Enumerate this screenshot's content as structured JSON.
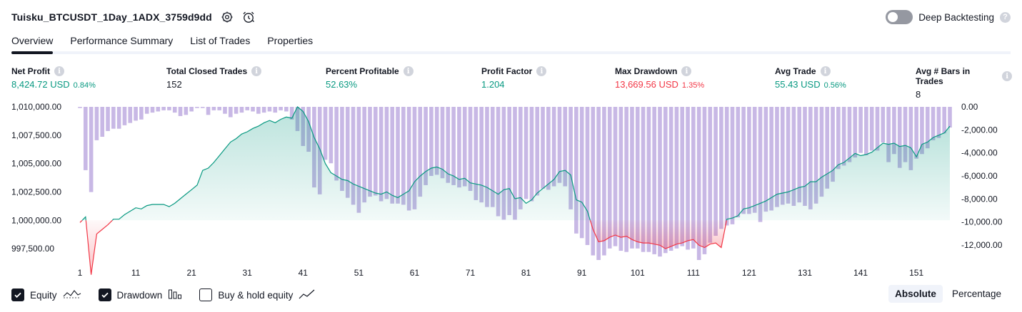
{
  "header": {
    "strategy_title": "Tuisku_BTCUSDT_1Day_1ADX_3759d9dd",
    "settings_icon": "gear-icon",
    "alert_icon": "alarm-clock-icon",
    "deep_backtesting_label": "Deep Backtesting",
    "deep_backtesting_enabled": false,
    "help_icon": "question-mark-icon",
    "help_glyph": "?"
  },
  "tabs": [
    {
      "label": "Overview",
      "active": true
    },
    {
      "label": "Performance Summary",
      "active": false
    },
    {
      "label": "List of Trades",
      "active": false
    },
    {
      "label": "Properties",
      "active": false
    }
  ],
  "stats": [
    {
      "label": "Net Profit",
      "value": "8,424.72 USD",
      "pct": "0.84%",
      "color": "#089981"
    },
    {
      "label": "Total Closed Trades",
      "value": "152",
      "pct": "",
      "color": "#131722"
    },
    {
      "label": "Percent Profitable",
      "value": "52.63%",
      "pct": "",
      "color": "#089981"
    },
    {
      "label": "Profit Factor",
      "value": "1.204",
      "pct": "",
      "color": "#089981"
    },
    {
      "label": "Max Drawdown",
      "value": "13,669.56 USD",
      "pct": "1.35%",
      "color": "#f23645"
    },
    {
      "label": "Avg Trade",
      "value": "55.43 USD",
      "pct": "0.56%",
      "color": "#089981"
    },
    {
      "label": "Avg # Bars in Trades",
      "value": "8",
      "pct": "",
      "color": "#131722"
    }
  ],
  "info_glyph": "i",
  "chart_data": {
    "type": "line",
    "x_ticks": [
      1,
      11,
      21,
      31,
      41,
      51,
      61,
      71,
      81,
      91,
      101,
      111,
      121,
      131,
      141,
      151
    ],
    "left_axis": {
      "ticks": [
        "1,010,000.00",
        "1,007,500.00",
        "1,005,000.00",
        "1,002,500.00",
        "1,000,000.00",
        "997,500.00"
      ],
      "range": [
        996500,
        1010000
      ]
    },
    "right_axis": {
      "ticks": [
        "0.00",
        "-2,000.00",
        "-4,000.00",
        "-6,000.00",
        "-8,000.00",
        "-10,000.00",
        "-12,000.00"
      ],
      "range": [
        -13300,
        0
      ]
    },
    "baseline": 1000000,
    "series": [
      {
        "name": "Equity",
        "color_above": "#089981",
        "color_below": "#f23645",
        "line_above": "#089981",
        "values": [
          999800,
          1000300,
          995200,
          998800,
          999200,
          999600,
          1000100,
          1000100,
          1000500,
          1000800,
          1001100,
          1001000,
          1001300,
          1001400,
          1001400,
          1001400,
          1001200,
          1001500,
          1001900,
          1002300,
          1002700,
          1003100,
          1004400,
          1004600,
          1005100,
          1005700,
          1006300,
          1006900,
          1007200,
          1007600,
          1007800,
          1008100,
          1008300,
          1008600,
          1008800,
          1008600,
          1008900,
          1009100,
          1009000,
          1010000,
          1009600,
          1008700,
          1007300,
          1006300,
          1005000,
          1004200,
          1003900,
          1003600,
          1003500,
          1003200,
          1003000,
          1002800,
          1002600,
          1002400,
          1002300,
          1002500,
          1002200,
          1002000,
          1002300,
          1002600,
          1003400,
          1003900,
          1004300,
          1004600,
          1004700,
          1004500,
          1004100,
          1003900,
          1003600,
          1003700,
          1003300,
          1003200,
          1003100,
          1002900,
          1002600,
          1002300,
          1002700,
          1002800,
          1001900,
          1002000,
          1001500,
          1001800,
          1002400,
          1002800,
          1003200,
          1003600,
          1004300,
          1004400,
          1004000,
          1001800,
          1001600,
          1000800,
          999200,
          998100,
          998200,
          998500,
          998700,
          998500,
          998600,
          998300,
          998100,
          998000,
          998000,
          997900,
          997800,
          997500,
          997700,
          997900,
          998000,
          998200,
          998300,
          997800,
          997600,
          997900,
          998000,
          997600,
          1000100,
          1000200,
          1000400,
          1001000,
          1001100,
          1001300,
          1001500,
          1001700,
          1002000,
          1002300,
          1002400,
          1002500,
          1002700,
          1002900,
          1003000,
          1003400,
          1003400,
          1003800,
          1004100,
          1004400,
          1004900,
          1005100,
          1005500,
          1005900,
          1005700,
          1005800,
          1006000,
          1006400,
          1006800,
          1006700,
          1006800,
          1006500,
          1006600,
          1006400,
          1005600,
          1006700,
          1006900,
          1007300,
          1007500,
          1007700,
          1008300
        ]
      },
      {
        "name": "Drawdown",
        "color": "#b39ddb",
        "values": [
          -100,
          -5500,
          -7400,
          -2900,
          -2600,
          -2100,
          -1900,
          -1900,
          -1600,
          -1400,
          -1200,
          -1100,
          -600,
          -500,
          -400,
          -300,
          -300,
          -500,
          -800,
          -700,
          -400,
          -100,
          -100,
          -700,
          -300,
          -300,
          -600,
          -900,
          -600,
          -500,
          -300,
          -400,
          -600,
          -500,
          -400,
          -500,
          -300,
          -400,
          -1100,
          -2100,
          -3400,
          -3900,
          -7000,
          -7600,
          -4600,
          -4900,
          -6400,
          -7300,
          -7900,
          -8500,
          -9200,
          -8300,
          -7800,
          -7700,
          -8200,
          -8000,
          -8400,
          -8400,
          -8500,
          -9000,
          -8900,
          -7800,
          -6800,
          -6000,
          -5900,
          -6200,
          -6600,
          -6800,
          -7000,
          -6900,
          -7300,
          -8100,
          -8300,
          -8700,
          -8700,
          -9500,
          -9800,
          -9400,
          -9800,
          -8900,
          -8000,
          -8200,
          -7700,
          -7100,
          -7200,
          -6900,
          -6600,
          -6900,
          -8900,
          -11000,
          -11400,
          -12000,
          -12900,
          -13300,
          -12900,
          -12300,
          -12100,
          -12500,
          -12600,
          -12300,
          -12300,
          -12600,
          -12600,
          -12800,
          -13000,
          -12700,
          -12500,
          -12300,
          -12100,
          -12400,
          -12300,
          -13300,
          -12800,
          -11800,
          -11200,
          -10600,
          -10300,
          -10200,
          -9600,
          -9300,
          -9300,
          -9200,
          -10000,
          -9100,
          -9000,
          -8700,
          -8500,
          -8400,
          -8600,
          -8300,
          -8600,
          -8900,
          -8400,
          -7800,
          -7100,
          -6500,
          -5400,
          -5100,
          -4800,
          -4400,
          -4000,
          -4200,
          -3800,
          -3800,
          -3100,
          -4800,
          -4100,
          -5300,
          -4800,
          -5500,
          -4500,
          -4100,
          -3600,
          -2900,
          -2700,
          -2300,
          -1800
        ]
      }
    ],
    "grid": false
  },
  "legend": [
    {
      "label": "Equity",
      "checked": true,
      "icon": "equity-line-icon"
    },
    {
      "label": "Drawdown",
      "checked": true,
      "icon": "drawdown-bars-icon"
    },
    {
      "label": "Buy & hold equity",
      "checked": false,
      "icon": "buy-hold-line-icon"
    }
  ],
  "scale_modes": [
    {
      "label": "Absolute",
      "active": true
    },
    {
      "label": "Percentage",
      "active": false
    }
  ]
}
